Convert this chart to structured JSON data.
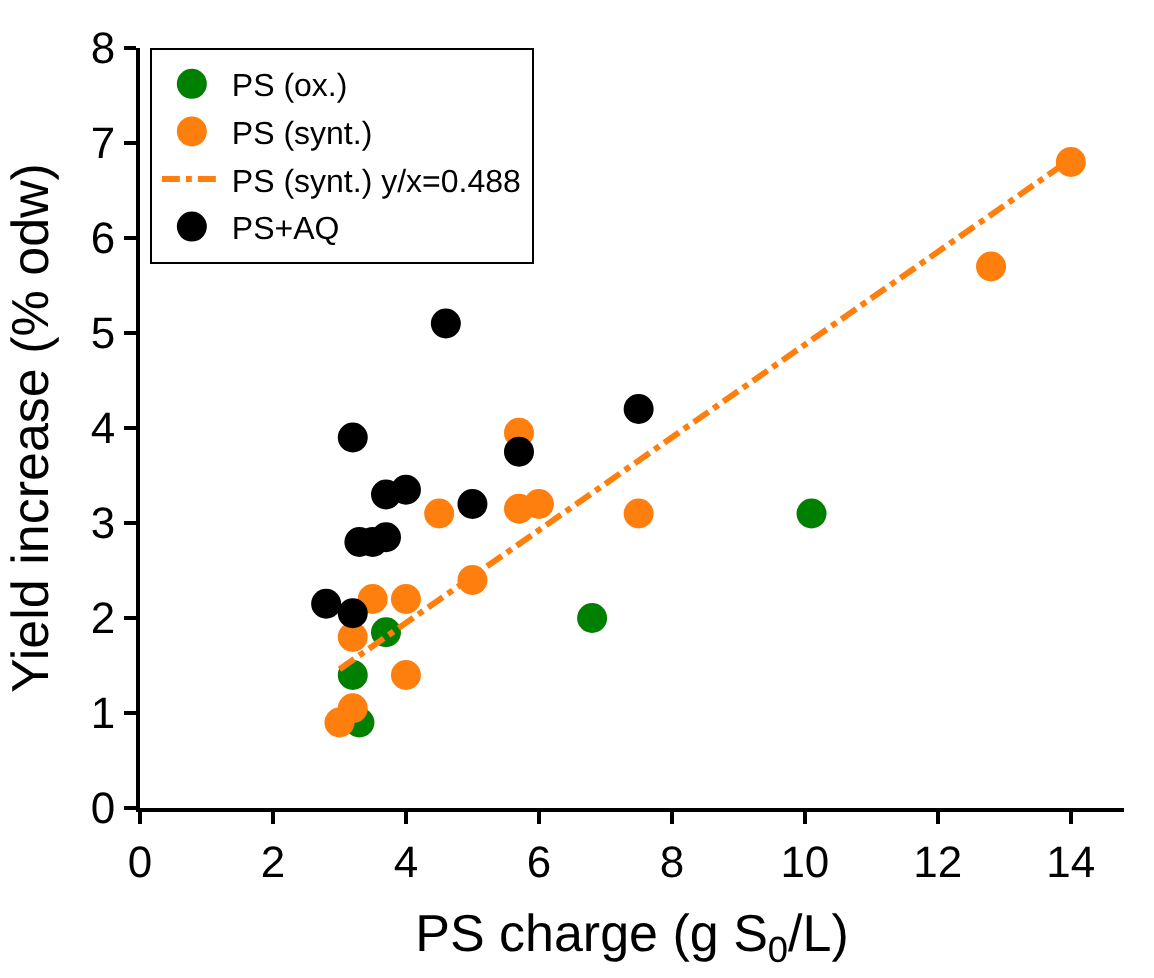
{
  "chart_data": {
    "type": "scatter",
    "xlabel": "PS charge (g S$_{0}$/L)",
    "ylabel": "Yield increase (% odw)",
    "xlim": [
      0,
      14.8
    ],
    "xticks": [
      0,
      2,
      4,
      6,
      8,
      10,
      12,
      14
    ],
    "ylim": [
      0,
      8
    ],
    "yticks": [
      0,
      1,
      2,
      3,
      4,
      5,
      6,
      7,
      8
    ],
    "legend": "top left",
    "marker": "circle",
    "series": [
      {
        "name": "PS (ox.)",
        "color": "#008000",
        "x": [
          3.3,
          3.2,
          3.7,
          6.8,
          10.1
        ],
        "values": [
          0.9,
          1.4,
          1.85,
          2.0,
          3.1
        ]
      },
      {
        "name": "PS (synt.)",
        "color": "#ff7f0e",
        "x": [
          3.0,
          3.2,
          3.2,
          3.5,
          4.0,
          4.0,
          4.5,
          5.0,
          5.7,
          5.7,
          6.0,
          7.5,
          12.8,
          14.0
        ],
        "values": [
          0.9,
          1.05,
          1.8,
          2.2,
          2.2,
          1.4,
          3.1,
          2.4,
          3.95,
          3.15,
          3.2,
          3.1,
          5.7,
          6.8
        ]
      },
      {
        "name": "PS (synt.) y/x=0.488",
        "type": "line",
        "line_style": "dashed",
        "marker": "none",
        "color": "#ff7f0e",
        "x": [
          3.0,
          14.0
        ],
        "values": [
          1.46,
          6.83
        ]
      },
      {
        "name": "PS+AQ",
        "color": "#000000",
        "x": [
          2.8,
          3.2,
          3.2,
          3.3,
          3.5,
          3.7,
          3.7,
          4.0,
          4.6,
          5.0,
          5.7,
          7.5
        ],
        "values": [
          2.15,
          2.05,
          3.9,
          2.8,
          2.8,
          2.85,
          3.3,
          3.35,
          5.1,
          3.2,
          3.75,
          4.2
        ]
      }
    ]
  }
}
